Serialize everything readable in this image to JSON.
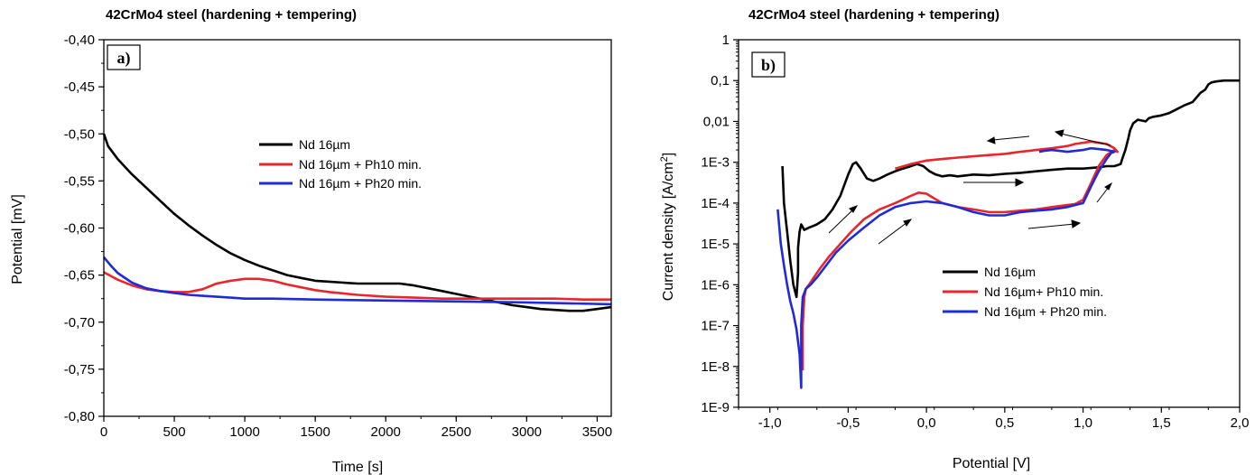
{
  "chart_data": [
    {
      "type": "line",
      "title": "42CrMo4 steel (hardening + tempering)",
      "panel_label": "a)",
      "xlabel": "Time [s]",
      "ylabel": "Potential [mV]",
      "xlim": [
        0,
        3600
      ],
      "ylim": [
        -0.8,
        -0.4
      ],
      "xticks": [
        0,
        500,
        1000,
        1500,
        2000,
        2500,
        3000,
        3500
      ],
      "xtick_labels": [
        "0",
        "500",
        "1000",
        "1500",
        "2000",
        "2500",
        "3000",
        "3500"
      ],
      "yticks": [
        -0.8,
        -0.75,
        -0.7,
        -0.65,
        -0.6,
        -0.55,
        -0.5,
        -0.45,
        -0.4
      ],
      "ytick_labels": [
        "-0,80",
        "-0,75",
        "-0,70",
        "-0,65",
        "-0,60",
        "-0,55",
        "-0,50",
        "-0,45",
        "-0,40"
      ],
      "grid": false,
      "legend_position": "center",
      "series": [
        {
          "name": "Nd 16µm",
          "color": "#000000",
          "x": [
            0,
            30,
            100,
            200,
            300,
            400,
            500,
            600,
            700,
            800,
            900,
            1000,
            1100,
            1200,
            1300,
            1400,
            1500,
            1600,
            1700,
            1800,
            1900,
            2000,
            2100,
            2200,
            2300,
            2400,
            2500,
            2600,
            2700,
            2800,
            2900,
            3000,
            3100,
            3200,
            3300,
            3400,
            3500,
            3600
          ],
          "y": [
            -0.5,
            -0.513,
            -0.527,
            -0.543,
            -0.557,
            -0.571,
            -0.585,
            -0.597,
            -0.608,
            -0.618,
            -0.627,
            -0.634,
            -0.64,
            -0.645,
            -0.65,
            -0.653,
            -0.656,
            -0.657,
            -0.658,
            -0.659,
            -0.659,
            -0.659,
            -0.659,
            -0.661,
            -0.664,
            -0.667,
            -0.67,
            -0.673,
            -0.676,
            -0.679,
            -0.682,
            -0.684,
            -0.686,
            -0.687,
            -0.688,
            -0.688,
            -0.686,
            -0.684
          ]
        },
        {
          "name": "Nd 16µm + Ph10 min.",
          "color": "#e8262b",
          "x": [
            0,
            100,
            200,
            300,
            400,
            500,
            600,
            700,
            800,
            900,
            1000,
            1100,
            1200,
            1300,
            1400,
            1500,
            1600,
            1800,
            2000,
            2200,
            2400,
            2600,
            2800,
            3000,
            3200,
            3400,
            3600
          ],
          "y": [
            -0.647,
            -0.655,
            -0.661,
            -0.665,
            -0.667,
            -0.668,
            -0.668,
            -0.665,
            -0.659,
            -0.656,
            -0.654,
            -0.654,
            -0.656,
            -0.66,
            -0.663,
            -0.666,
            -0.668,
            -0.671,
            -0.673,
            -0.674,
            -0.675,
            -0.675,
            -0.675,
            -0.675,
            -0.675,
            -0.676,
            -0.676
          ]
        },
        {
          "name": "Nd 16µm + Ph20 min.",
          "color": "#1f2bd6",
          "x": [
            0,
            50,
            100,
            200,
            300,
            400,
            500,
            600,
            700,
            800,
            900,
            1000,
            1200,
            1500,
            2000,
            2500,
            3000,
            3600
          ],
          "y": [
            -0.631,
            -0.64,
            -0.648,
            -0.658,
            -0.664,
            -0.667,
            -0.669,
            -0.671,
            -0.672,
            -0.673,
            -0.674,
            -0.675,
            -0.675,
            -0.676,
            -0.677,
            -0.678,
            -0.679,
            -0.681
          ]
        }
      ]
    },
    {
      "type": "line",
      "title": "42CrMo4 steel (hardening + tempering)",
      "panel_label": "b)",
      "xlabel": "Potential [V]",
      "ylabel": "Current density [A/cm²]",
      "yscale": "log",
      "xlim": [
        -1.2,
        2.0
      ],
      "ylim": [
        1e-09,
        1
      ],
      "xticks": [
        -1.0,
        -0.5,
        0.0,
        0.5,
        1.0,
        1.5,
        2.0
      ],
      "xtick_labels": [
        "-1,0",
        "-0,5",
        "0,0",
        "0,5",
        "1,0",
        "1,5",
        "2,0"
      ],
      "yticks": [
        1e-09,
        1e-08,
        1e-07,
        1e-06,
        1e-05,
        0.0001,
        0.001,
        0.01,
        0.1,
        1
      ],
      "ytick_labels": [
        "1E-9",
        "1E-8",
        "1E-7",
        "1E-6",
        "1E-5",
        "1E-4",
        "1E-3",
        "0,01",
        "0,1",
        "1"
      ],
      "grid": false,
      "legend_position": "center-right",
      "series": [
        {
          "name": "Nd 16µm",
          "color": "#000000",
          "x": [
            -0.92,
            -0.91,
            -0.89,
            -0.87,
            -0.85,
            -0.83,
            -0.82,
            -0.82,
            -0.81,
            -0.8,
            -0.78,
            -0.75,
            -0.72,
            -0.7,
            -0.65,
            -0.6,
            -0.55,
            -0.5,
            -0.47,
            -0.45,
            -0.42,
            -0.38,
            -0.34,
            -0.3,
            -0.25,
            -0.2,
            -0.15,
            -0.1,
            -0.06,
            -0.02,
            0.02,
            0.06,
            0.1,
            0.15,
            0.2,
            0.3,
            0.4,
            0.5,
            0.6,
            0.7,
            0.8,
            0.9,
            1.0,
            1.1,
            1.15,
            1.2,
            1.22,
            1.24,
            1.25,
            1.27,
            1.29,
            1.3,
            1.32,
            1.35,
            1.4,
            1.42,
            1.45,
            1.5,
            1.55,
            1.6,
            1.65,
            1.7,
            1.75,
            1.78,
            1.8,
            1.82,
            1.85,
            1.9,
            1.95,
            2.0
          ],
          "y": [
            0.0008,
            0.0001,
            2e-05,
            4e-06,
            1e-06,
            5e-07,
            2e-06,
            8e-06,
            2e-05,
            3e-05,
            2.2e-05,
            2.5e-05,
            2.8e-05,
            3e-05,
            4e-05,
            7e-05,
            0.00015,
            0.0005,
            0.0009,
            0.001,
            0.0007,
            0.0004,
            0.00035,
            0.0004,
            0.0005,
            0.0006,
            0.0007,
            0.0008,
            0.0009,
            0.0008,
            0.0006,
            0.0005,
            0.00045,
            0.00048,
            0.00045,
            0.0005,
            0.00048,
            0.00052,
            0.00055,
            0.0006,
            0.00065,
            0.0007,
            0.0007,
            0.00075,
            0.0008,
            0.0008,
            0.00085,
            0.0009,
            0.0012,
            0.002,
            0.004,
            0.006,
            0.009,
            0.011,
            0.01,
            0.012,
            0.013,
            0.014,
            0.016,
            0.02,
            0.025,
            0.03,
            0.05,
            0.06,
            0.08,
            0.09,
            0.095,
            0.1,
            0.1,
            0.1
          ]
        },
        {
          "name": "Nd 16µm+ Ph10 min.",
          "color": "#e8262b",
          "x": [
            -0.79,
            -0.79,
            -0.78,
            -0.77,
            -0.75,
            -0.72,
            -0.68,
            -0.62,
            -0.55,
            -0.48,
            -0.4,
            -0.3,
            -0.2,
            -0.1,
            -0.05,
            0.0,
            0.05,
            0.1,
            0.2,
            0.3,
            0.4,
            0.5,
            0.6,
            0.7,
            0.8,
            0.9,
            0.95,
            1.0,
            1.05,
            1.1,
            1.15,
            1.2,
            1.22,
            1.2,
            1.15,
            1.1,
            1.05,
            1.0,
            0.95,
            0.9,
            0.8,
            0.7,
            0.6,
            0.5,
            0.4,
            0.3,
            0.2,
            0.1,
            0.0,
            -0.1,
            -0.2
          ],
          "y": [
            8e-09,
            1e-07,
            5e-07,
            8e-07,
            1e-06,
            1.5e-06,
            2.5e-06,
            5e-06,
            1e-05,
            2e-05,
            4e-05,
            7e-05,
            0.0001,
            0.00015,
            0.00018,
            0.00017,
            0.00013,
            0.0001,
            8e-05,
            7e-05,
            6e-05,
            6e-05,
            6.5e-05,
            7e-05,
            8e-05,
            9e-05,
            9.5e-05,
            0.00012,
            0.0003,
            0.0008,
            0.0015,
            0.002,
            0.0018,
            0.0022,
            0.0028,
            0.003,
            0.0032,
            0.003,
            0.0028,
            0.0025,
            0.0022,
            0.002,
            0.0018,
            0.0016,
            0.0015,
            0.0014,
            0.0013,
            0.0012,
            0.0011,
            0.0009,
            0.0007
          ]
        },
        {
          "name": "Nd 16µm + Ph20 min.",
          "color": "#1f2bd6",
          "x": [
            -0.95,
            -0.93,
            -0.91,
            -0.89,
            -0.87,
            -0.85,
            -0.83,
            -0.81,
            -0.8,
            -0.8,
            -0.79,
            -0.77,
            -0.74,
            -0.7,
            -0.64,
            -0.58,
            -0.5,
            -0.4,
            -0.3,
            -0.2,
            -0.1,
            0.0,
            0.1,
            0.2,
            0.3,
            0.4,
            0.5,
            0.6,
            0.7,
            0.8,
            0.9,
            1.0,
            1.05,
            1.1,
            1.15,
            1.18,
            1.2,
            1.18,
            1.15,
            1.1,
            1.05,
            1.0,
            0.95,
            0.9,
            0.85,
            0.8,
            0.75,
            0.72
          ],
          "y": [
            7e-05,
            1e-05,
            3e-06,
            1e-06,
            4e-07,
            2e-07,
            8e-08,
            2e-08,
            3e-09,
            1e-07,
            5e-07,
            8e-07,
            1e-06,
            1.5e-06,
            3e-06,
            6e-06,
            1.2e-05,
            2.5e-05,
            5e-05,
            8e-05,
            0.0001,
            0.00011,
            0.0001,
            8e-05,
            6e-05,
            5e-05,
            5e-05,
            6e-05,
            6.5e-05,
            7e-05,
            8e-05,
            0.0001,
            0.00025,
            0.0006,
            0.0012,
            0.0017,
            0.0018,
            0.0019,
            0.002,
            0.0021,
            0.0022,
            0.002,
            0.0019,
            0.0018,
            0.0019,
            0.002,
            0.0019,
            0.0018
          ]
        }
      ]
    }
  ]
}
